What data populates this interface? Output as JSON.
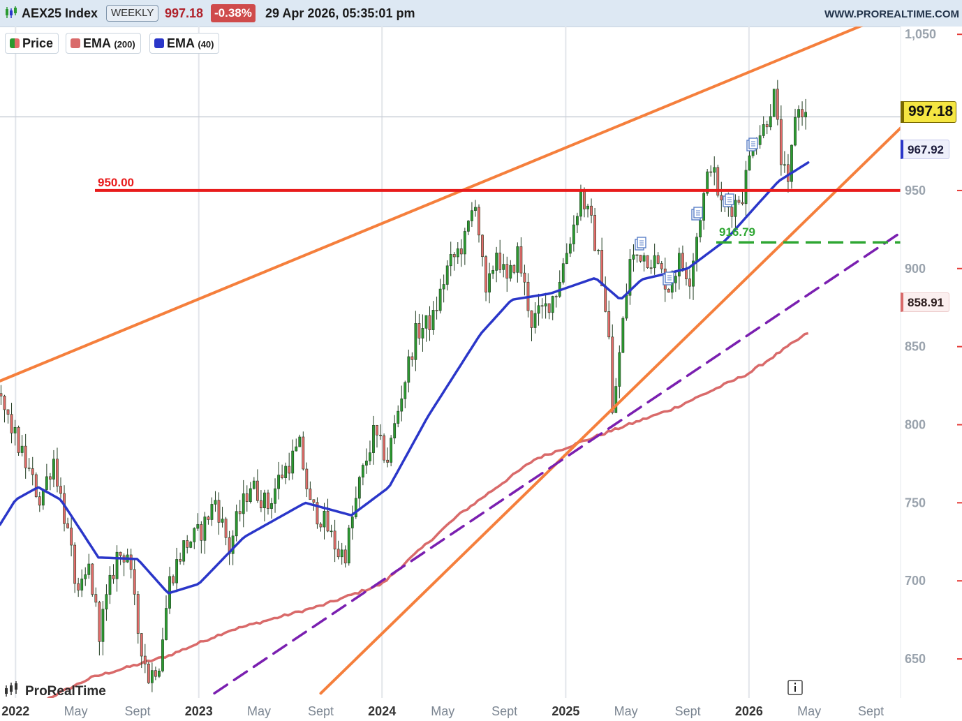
{
  "header": {
    "title": "AEX25 Index",
    "period": "WEEKLY",
    "price": "997.18",
    "change": "-0.38%",
    "datetime": "29 Apr 2026, 05:35:01 pm",
    "site": "WWW.PROREALTIME.COM"
  },
  "legend": {
    "price": {
      "label": "Price",
      "colors": [
        "#2b9a30",
        "#e36b6b"
      ]
    },
    "ema200": {
      "label": "EMA",
      "period": "(200)",
      "color": "#d96a6a"
    },
    "ema40": {
      "label": "EMA",
      "period": "(40)",
      "color": "#2a36c9"
    }
  },
  "watermark": "ProRealTime",
  "info_icon": "info-icon",
  "price_tags": {
    "last": {
      "value": "997.18",
      "bg": "#f5e642",
      "border": "#7a6a00"
    },
    "ema40": {
      "value": "967.92",
      "color": "#2a36c9"
    },
    "ema200": {
      "value": "858.91",
      "color": "#d96a6a"
    }
  },
  "chart_data": {
    "type": "candlestick",
    "instrument": "AEX25 Index",
    "timeframe": "WEEKLY",
    "ylim": [
      625,
      1055
    ],
    "xlim": [
      "2021-12-01",
      "2026-10-30"
    ],
    "y_ticks": [
      650,
      700,
      750,
      800,
      850,
      900,
      950,
      1050
    ],
    "y_tick_labels": [
      "650",
      "700",
      "750",
      "800",
      "850",
      "900",
      "950",
      "1,050"
    ],
    "x_ticks": [
      {
        "date": "2022-01-01",
        "label": "2022",
        "major": true
      },
      {
        "date": "2022-05-01",
        "label": "May",
        "major": false
      },
      {
        "date": "2022-09-01",
        "label": "Sept",
        "major": false
      },
      {
        "date": "2023-01-01",
        "label": "2023",
        "major": true
      },
      {
        "date": "2023-05-01",
        "label": "May",
        "major": false
      },
      {
        "date": "2023-09-01",
        "label": "Sept",
        "major": false
      },
      {
        "date": "2024-01-01",
        "label": "2024",
        "major": true
      },
      {
        "date": "2024-05-01",
        "label": "May",
        "major": false
      },
      {
        "date": "2024-09-01",
        "label": "Sept",
        "major": false
      },
      {
        "date": "2025-01-01",
        "label": "2025",
        "major": true
      },
      {
        "date": "2025-05-01",
        "label": "May",
        "major": false
      },
      {
        "date": "2025-09-01",
        "label": "Sept",
        "major": false
      },
      {
        "date": "2026-01-01",
        "label": "2026",
        "major": true
      },
      {
        "date": "2026-05-01",
        "label": "May",
        "major": false
      },
      {
        "date": "2026-09-01",
        "label": "Sept",
        "major": false
      }
    ],
    "price_keypoints": [
      [
        "2021-12-03",
        820
      ],
      [
        "2022-01-07",
        792
      ],
      [
        "2022-02-25",
        752
      ],
      [
        "2022-03-25",
        778
      ],
      [
        "2022-04-22",
        730
      ],
      [
        "2022-05-13",
        688
      ],
      [
        "2022-06-03",
        708
      ],
      [
        "2022-06-24",
        668
      ],
      [
        "2022-07-29",
        716
      ],
      [
        "2022-08-19",
        718
      ],
      [
        "2022-09-09",
        668
      ],
      [
        "2022-09-30",
        638
      ],
      [
        "2022-10-21",
        648
      ],
      [
        "2022-11-11",
        700
      ],
      [
        "2022-12-09",
        722
      ],
      [
        "2023-01-13",
        732
      ],
      [
        "2023-02-10",
        752
      ],
      [
        "2023-03-10",
        720
      ],
      [
        "2023-03-24",
        738
      ],
      [
        "2023-04-21",
        762
      ],
      [
        "2023-05-26",
        748
      ],
      [
        "2023-06-16",
        765
      ],
      [
        "2023-07-28",
        786
      ],
      [
        "2023-08-18",
        748
      ],
      [
        "2023-09-15",
        738
      ],
      [
        "2023-10-13",
        718
      ],
      [
        "2023-10-27",
        718
      ],
      [
        "2023-11-24",
        762
      ],
      [
        "2023-12-22",
        794
      ],
      [
        "2024-01-19",
        778
      ],
      [
        "2024-02-16",
        820
      ],
      [
        "2024-03-15",
        858
      ],
      [
        "2024-04-19",
        868
      ],
      [
        "2024-05-17",
        900
      ],
      [
        "2024-06-21",
        918
      ],
      [
        "2024-07-12",
        945
      ],
      [
        "2024-08-02",
        880
      ],
      [
        "2024-08-23",
        912
      ],
      [
        "2024-09-13",
        890
      ],
      [
        "2024-10-04",
        910
      ],
      [
        "2024-11-01",
        866
      ],
      [
        "2024-11-29",
        875
      ],
      [
        "2024-12-20",
        886
      ],
      [
        "2025-01-24",
        928
      ],
      [
        "2025-02-07",
        948
      ],
      [
        "2025-02-28",
        928
      ],
      [
        "2025-03-21",
        895
      ],
      [
        "2025-04-04",
        855
      ],
      [
        "2025-04-11",
        805
      ],
      [
        "2025-04-25",
        845
      ],
      [
        "2025-05-16",
        905
      ],
      [
        "2025-06-06",
        910
      ],
      [
        "2025-07-04",
        905
      ],
      [
        "2025-08-01",
        888
      ],
      [
        "2025-08-22",
        905
      ],
      [
        "2025-09-12",
        895
      ],
      [
        "2025-10-03",
        935
      ],
      [
        "2025-10-24",
        968
      ],
      [
        "2025-11-14",
        940
      ],
      [
        "2025-12-05",
        940
      ],
      [
        "2025-12-26",
        948
      ],
      [
        "2026-01-16",
        982
      ],
      [
        "2026-02-06",
        990
      ],
      [
        "2026-02-27",
        1010
      ],
      [
        "2026-03-13",
        970
      ],
      [
        "2026-03-27",
        950
      ],
      [
        "2026-04-10",
        1000
      ],
      [
        "2026-04-24",
        1002
      ],
      [
        "2026-04-29",
        997.18
      ]
    ],
    "ema200_keypoints": [
      [
        "2021-12-01",
        610
      ],
      [
        "2022-06-01",
        638
      ],
      [
        "2022-11-01",
        652
      ],
      [
        "2023-03-01",
        668
      ],
      [
        "2023-09-01",
        684
      ],
      [
        "2024-01-01",
        698
      ],
      [
        "2024-06-01",
        742
      ],
      [
        "2024-11-01",
        778
      ],
      [
        "2025-04-01",
        796
      ],
      [
        "2025-08-01",
        810
      ],
      [
        "2026-01-01",
        833
      ],
      [
        "2026-04-29",
        858.91
      ]
    ],
    "ema40_keypoints": [
      [
        "2021-12-01",
        736
      ],
      [
        "2022-01-01",
        752
      ],
      [
        "2022-02-15",
        760
      ],
      [
        "2022-04-01",
        752
      ],
      [
        "2022-06-15",
        715
      ],
      [
        "2022-09-01",
        714
      ],
      [
        "2022-11-01",
        692
      ],
      [
        "2023-01-01",
        698
      ],
      [
        "2023-04-01",
        728
      ],
      [
        "2023-08-01",
        750
      ],
      [
        "2023-11-01",
        742
      ],
      [
        "2024-01-15",
        760
      ],
      [
        "2024-04-01",
        805
      ],
      [
        "2024-07-15",
        858
      ],
      [
        "2024-09-15",
        880
      ],
      [
        "2024-12-01",
        884
      ],
      [
        "2025-03-01",
        894
      ],
      [
        "2025-04-20",
        880
      ],
      [
        "2025-06-01",
        893
      ],
      [
        "2025-09-01",
        900
      ],
      [
        "2025-11-15",
        918
      ],
      [
        "2026-01-15",
        940
      ],
      [
        "2026-03-01",
        956
      ],
      [
        "2026-04-29",
        967.92
      ]
    ],
    "overlays": {
      "resistance_level": {
        "value": 950.0,
        "label": "950.00",
        "color": "#e81c1c"
      },
      "support_level": {
        "value": 916.79,
        "label": "916.79",
        "color": "#2ea632"
      },
      "upper_trendline": {
        "points": [
          [
            "2021-12-01",
            828
          ],
          [
            "2026-09-01",
            1058
          ]
        ],
        "color": "#f57f3c"
      },
      "lower_trendline": {
        "points": [
          [
            "2023-09-01",
            628
          ],
          [
            "2026-10-30",
            990
          ]
        ],
        "color": "#f57f3c"
      },
      "dashed_trendline": {
        "points": [
          [
            "2023-02-01",
            628
          ],
          [
            "2026-10-30",
            923
          ]
        ],
        "color": "#7a1fb0"
      }
    }
  }
}
